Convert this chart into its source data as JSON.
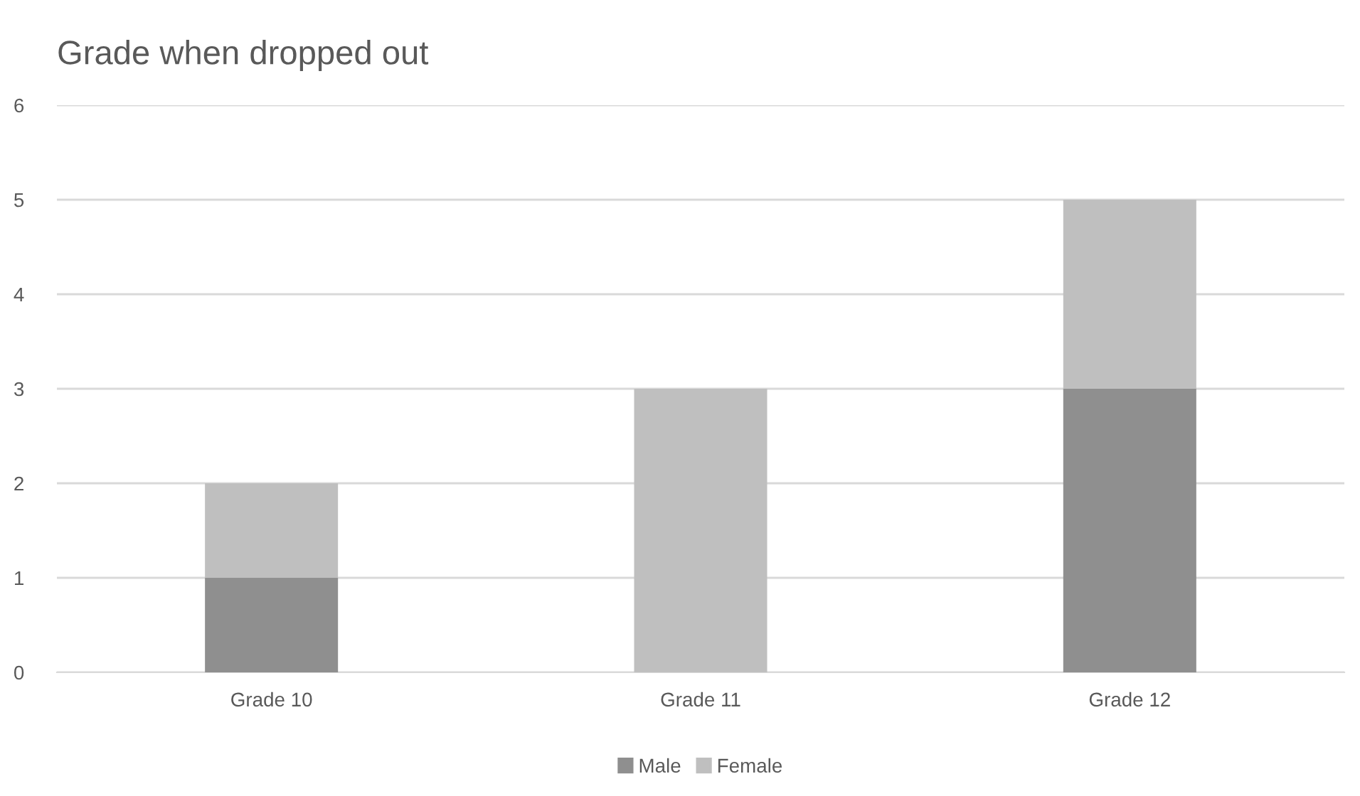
{
  "chart_data": {
    "type": "bar",
    "title": "Grade when dropped out",
    "categories": [
      "Grade 10",
      "Grade 11",
      "Grade 12"
    ],
    "series": [
      {
        "name": "Male",
        "color": "#8f8f8f",
        "values": [
          1,
          0,
          3
        ]
      },
      {
        "name": "Female",
        "color": "#bfbfbf",
        "values": [
          1,
          3,
          2
        ]
      }
    ],
    "stacked": true,
    "ylim": [
      0,
      6
    ],
    "yticks": [
      0,
      1,
      2,
      3,
      4,
      5,
      6
    ],
    "grid": "y",
    "legend": "bottom"
  }
}
